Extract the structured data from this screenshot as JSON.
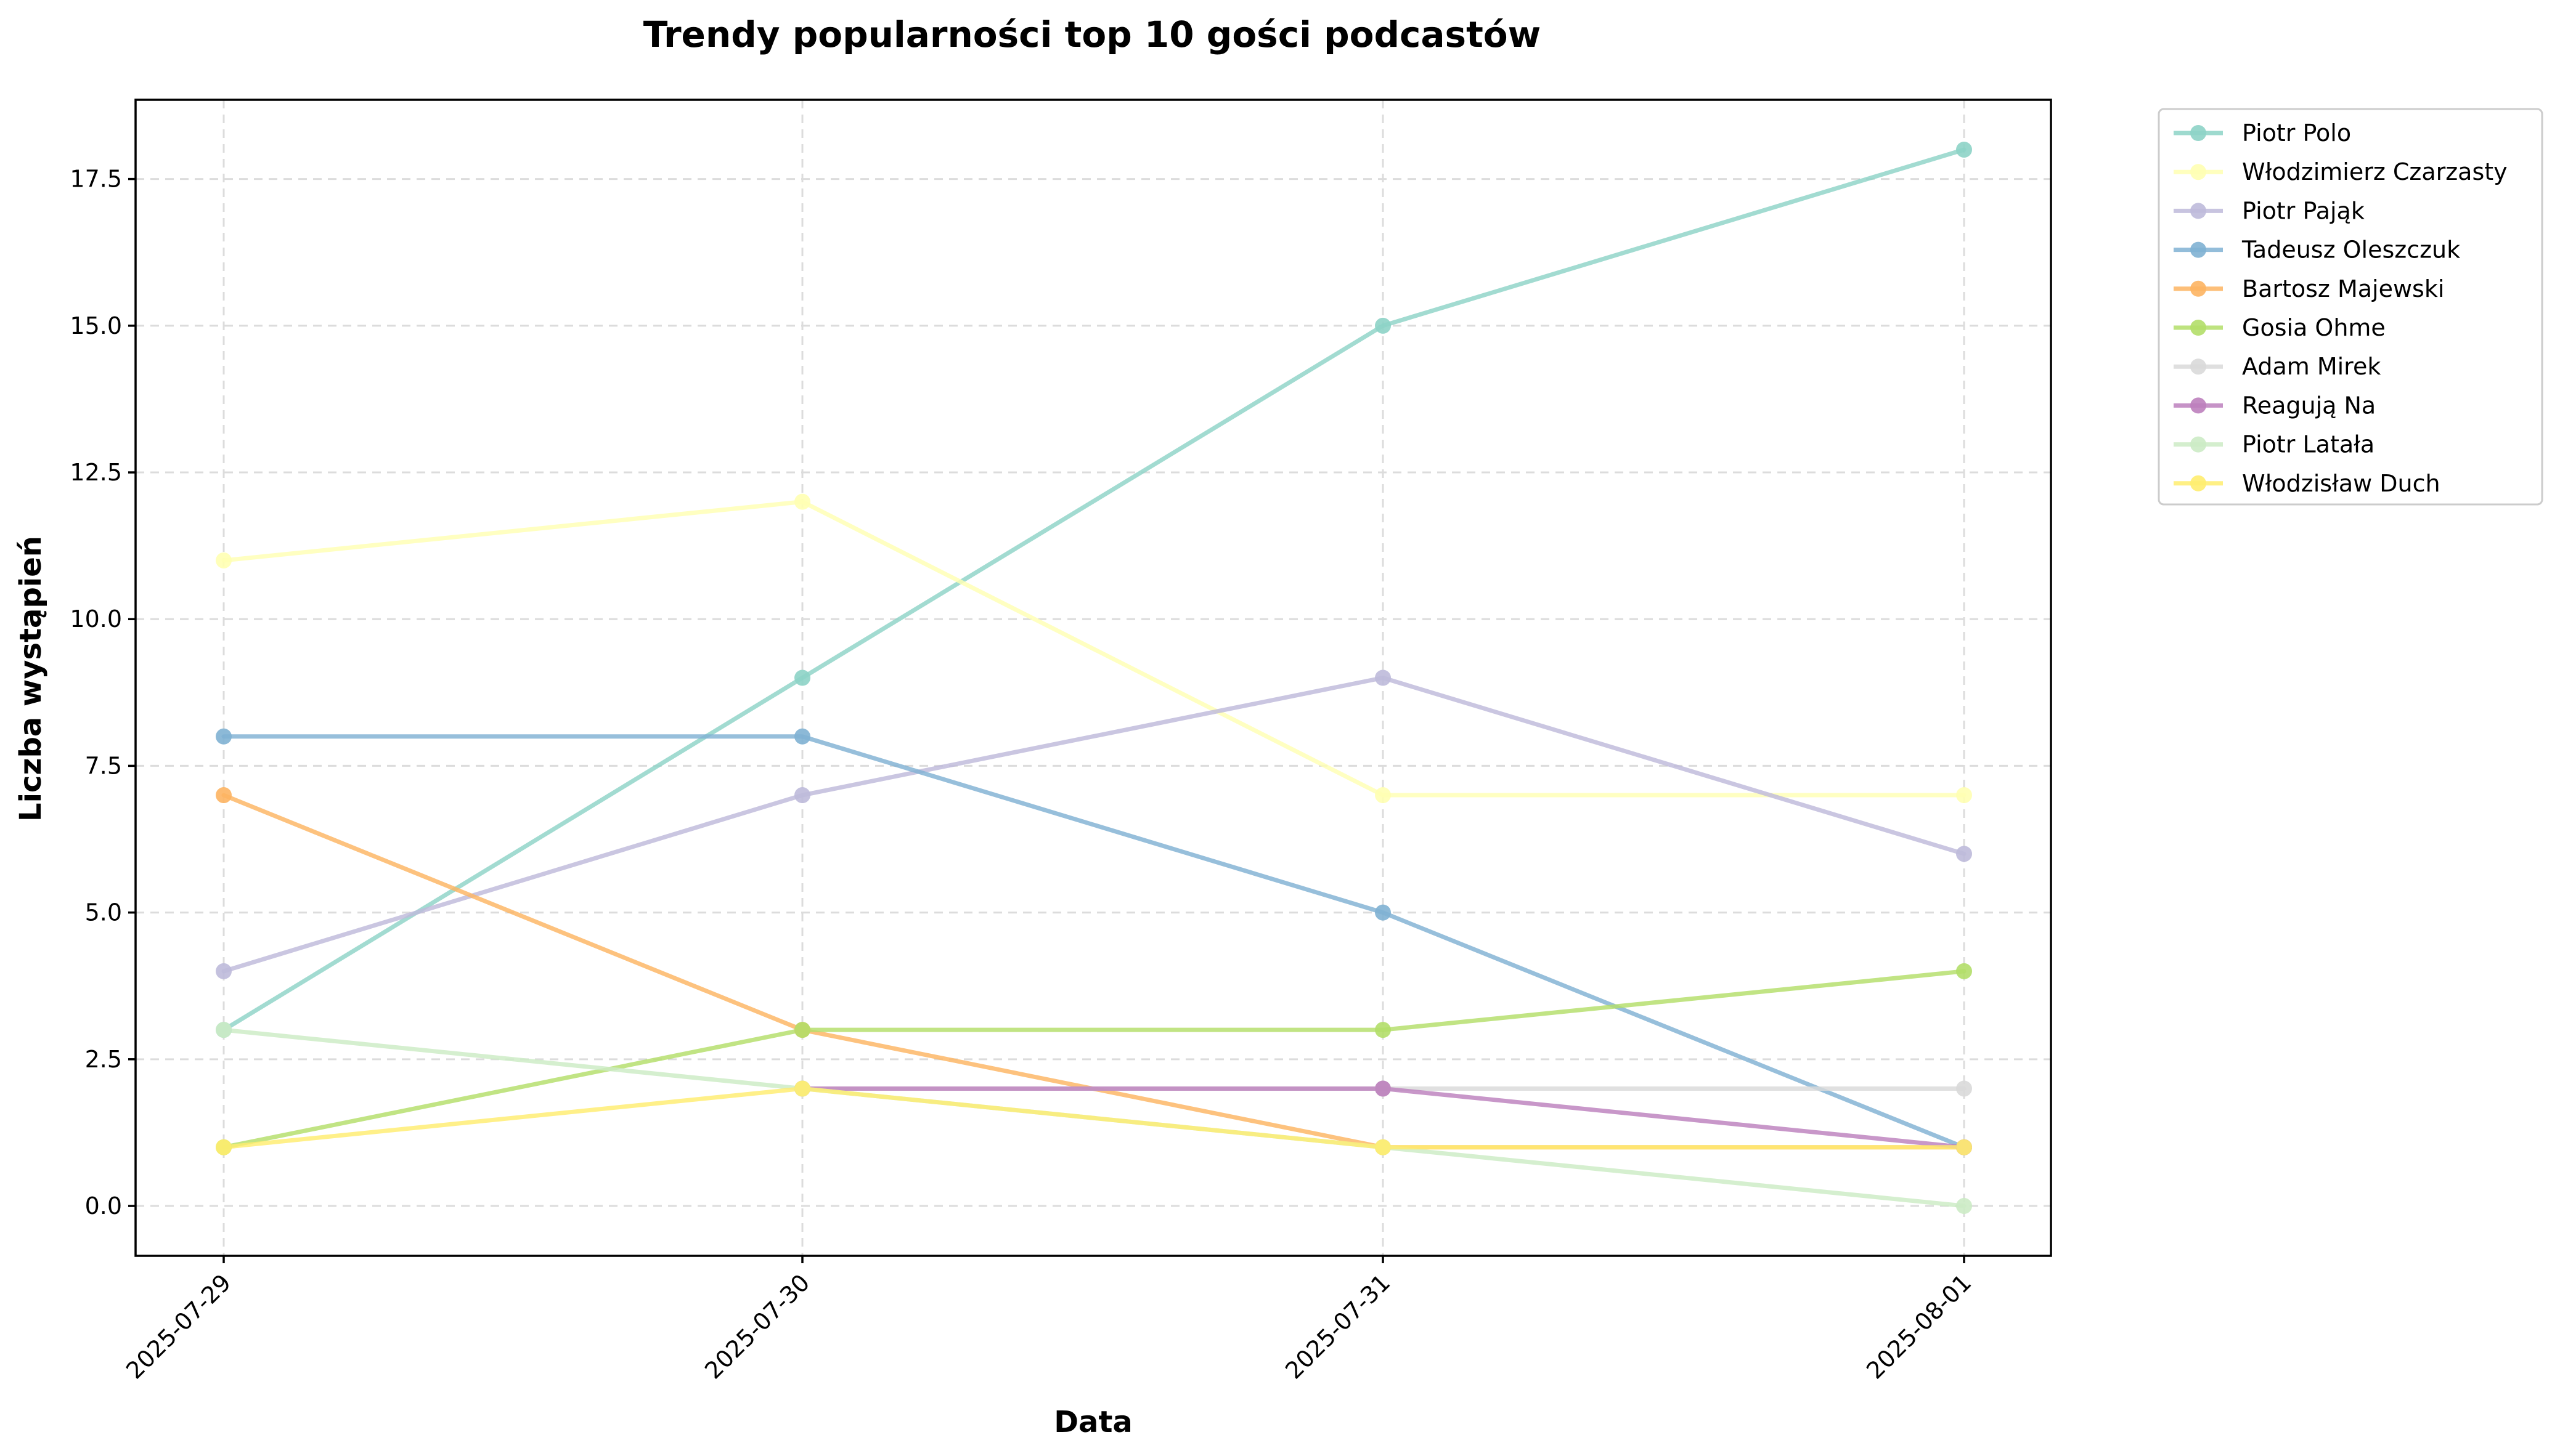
{
  "chart_data": {
    "type": "line",
    "title": "Trendy popularności top 10 gości podcastów",
    "xlabel": "Data",
    "ylabel": "Liczba wystąpień",
    "x": [
      "2025-07-29",
      "2025-07-30",
      "2025-07-31",
      "2025-08-01"
    ],
    "ylim": [
      -0.85,
      18.85
    ],
    "yticks": [
      "0.0",
      "2.5",
      "5.0",
      "7.5",
      "10.0",
      "12.5",
      "15.0",
      "17.5"
    ],
    "grid": true,
    "legend_position": "outside-top-right",
    "series": [
      {
        "name": "Piotr Polo",
        "color": "#8dd3c7",
        "values": [
          3,
          9,
          15,
          18
        ]
      },
      {
        "name": "Włodzimierz Czarzasty",
        "color": "#ffffb3",
        "values": [
          11,
          12,
          7,
          7
        ]
      },
      {
        "name": "Piotr Pająk",
        "color": "#bebada",
        "values": [
          4,
          7,
          9,
          6
        ]
      },
      {
        "name": "Tadeusz Oleszczuk",
        "color": "#80b1d3",
        "values": [
          8,
          8,
          5,
          1
        ]
      },
      {
        "name": "Bartosz Majewski",
        "color": "#fdb462",
        "values": [
          7,
          3,
          1,
          1
        ]
      },
      {
        "name": "Gosia Ohme",
        "color": "#b3de69",
        "values": [
          1,
          3,
          3,
          4
        ]
      },
      {
        "name": "Adam Mirek",
        "color": "#d9d9d9",
        "values": [
          null,
          2,
          2,
          2
        ]
      },
      {
        "name": "Reagują Na",
        "color": "#bc80bd",
        "values": [
          null,
          2,
          2,
          1
        ]
      },
      {
        "name": "Piotr Latała",
        "color": "#ccebc5",
        "values": [
          3,
          2,
          1,
          0
        ]
      },
      {
        "name": "Włodzisław Duch",
        "color": "#ffed6f",
        "values": [
          1,
          2,
          1,
          1
        ]
      }
    ]
  }
}
